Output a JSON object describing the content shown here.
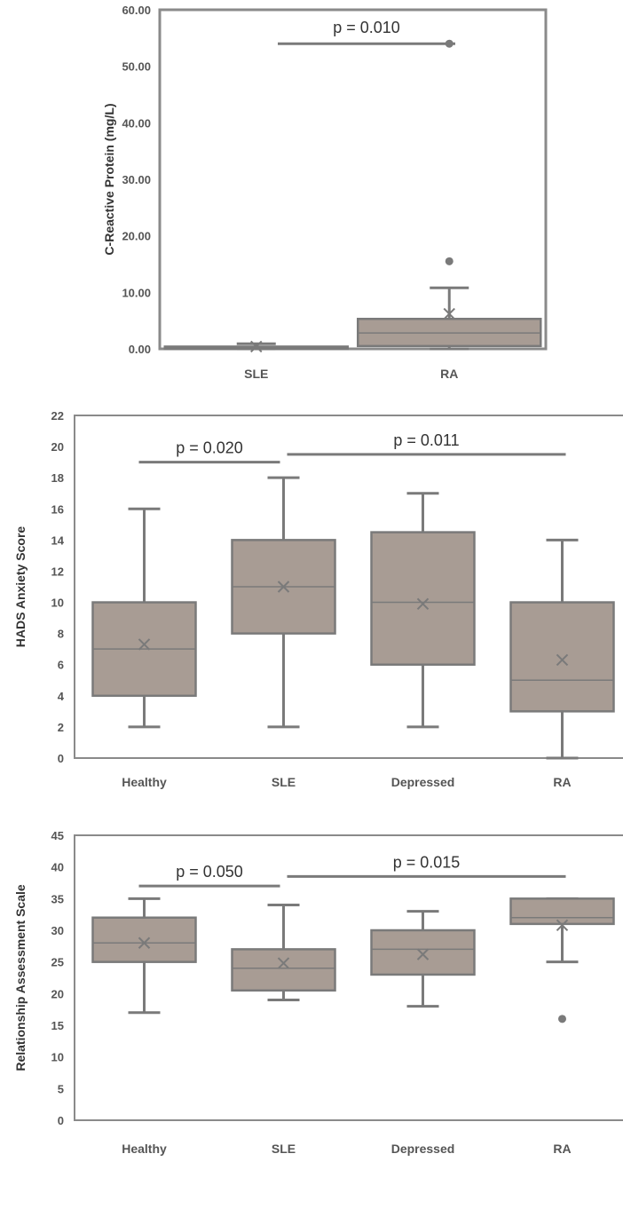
{
  "colors": {
    "box_fill": "#a89c94",
    "box_stroke": "#7a7a7a",
    "frame": "#8a8a8a",
    "text": "#555555"
  },
  "chart_data": [
    {
      "type": "box",
      "title": "",
      "xlabel": "",
      "ylabel": "C-Reactive Protein (mg/L)",
      "ylim": [
        0,
        60
      ],
      "yticks": [
        "0.00",
        "10.00",
        "20.00",
        "30.00",
        "40.00",
        "50.00",
        "60.00"
      ],
      "categories": [
        "SLE",
        "RA"
      ],
      "boxes": [
        {
          "category": "SLE",
          "whisker_low": 0,
          "q1": 0,
          "median": 0.2,
          "q3": 0.4,
          "whisker_high": 0.9,
          "mean": 0.4,
          "outliers": []
        },
        {
          "category": "RA",
          "whisker_low": 0,
          "q1": 0.5,
          "median": 2.8,
          "q3": 5.3,
          "whisker_high": 10.8,
          "mean": 6.2,
          "outliers": [
            15.5,
            54
          ]
        }
      ],
      "significance": [
        {
          "label": "p = 0.010",
          "y": 54,
          "from": "SLE",
          "to": "RA"
        }
      ]
    },
    {
      "type": "box",
      "title": "",
      "xlabel": "",
      "ylabel": "HADS Anxiety Score",
      "ylim": [
        0,
        22
      ],
      "yticks": [
        "0",
        "2",
        "4",
        "6",
        "8",
        "10",
        "12",
        "14",
        "16",
        "18",
        "20",
        "22"
      ],
      "categories": [
        "Healthy",
        "SLE",
        "Depressed",
        "RA"
      ],
      "boxes": [
        {
          "category": "Healthy",
          "whisker_low": 2,
          "q1": 4,
          "median": 7,
          "q3": 10,
          "whisker_high": 16,
          "mean": 7.3,
          "outliers": []
        },
        {
          "category": "SLE",
          "whisker_low": 2,
          "q1": 8,
          "median": 11,
          "q3": 14,
          "whisker_high": 18,
          "mean": 11,
          "outliers": []
        },
        {
          "category": "Depressed",
          "whisker_low": 2,
          "q1": 6,
          "median": 10,
          "q3": 14.5,
          "whisker_high": 17,
          "mean": 9.9,
          "outliers": []
        },
        {
          "category": "RA",
          "whisker_low": 0,
          "q1": 3,
          "median": 5,
          "q3": 10,
          "whisker_high": 14,
          "mean": 6.3,
          "outliers": []
        }
      ],
      "significance": [
        {
          "label": "p = 0.020",
          "y": 19,
          "from": "Healthy",
          "to": "SLE"
        },
        {
          "label": "p = 0.011",
          "y": 19.5,
          "from": "SLE",
          "to": "RA"
        }
      ]
    },
    {
      "type": "box",
      "title": "",
      "xlabel": "",
      "ylabel": "Relationship Assessment Scale",
      "ylim": [
        0,
        45
      ],
      "yticks": [
        "0",
        "5",
        "10",
        "15",
        "20",
        "25",
        "30",
        "35",
        "40",
        "45"
      ],
      "categories": [
        "Healthy",
        "SLE",
        "Depressed",
        "RA"
      ],
      "boxes": [
        {
          "category": "Healthy",
          "whisker_low": 17,
          "q1": 25,
          "median": 28,
          "q3": 32,
          "whisker_high": 35,
          "mean": 28,
          "outliers": []
        },
        {
          "category": "SLE",
          "whisker_low": 19,
          "q1": 20.5,
          "median": 24,
          "q3": 27,
          "whisker_high": 34,
          "mean": 24.8,
          "outliers": []
        },
        {
          "category": "Depressed",
          "whisker_low": 18,
          "q1": 23,
          "median": 27,
          "q3": 30,
          "whisker_high": 33,
          "mean": 26.2,
          "outliers": []
        },
        {
          "category": "RA",
          "whisker_low": 25,
          "q1": 31,
          "median": 32,
          "q3": 35,
          "whisker_high": 35,
          "mean": 30.8,
          "outliers": [
            16
          ]
        }
      ],
      "significance": [
        {
          "label": "p = 0.050",
          "y": 37,
          "from": "Healthy",
          "to": "SLE"
        },
        {
          "label": "p = 0.015",
          "y": 38.5,
          "from": "SLE",
          "to": "RA"
        }
      ]
    }
  ]
}
